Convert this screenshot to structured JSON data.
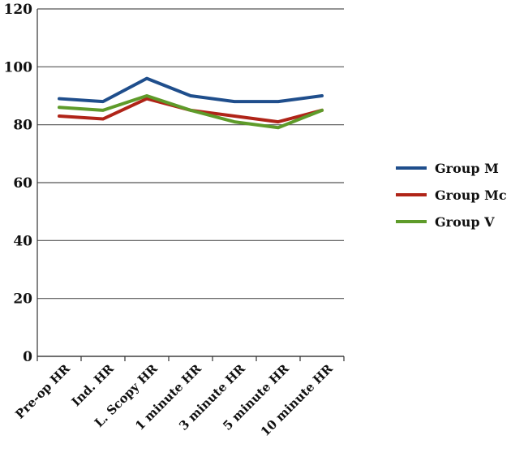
{
  "chart_data": {
    "type": "line",
    "title": "",
    "xlabel": "",
    "ylabel": "",
    "categories": [
      "Pre-op HR",
      "Ind. HR",
      "L. Scopy HR",
      "1 minute HR",
      "3 minute HR",
      "5 minute HR",
      "10 minute HR"
    ],
    "ylim": [
      0,
      120
    ],
    "yticks": [
      "0",
      "20",
      "40",
      "60",
      "80",
      "100",
      "120"
    ],
    "grid": true,
    "legend_position": "right",
    "series": [
      {
        "name": "Group M",
        "color": "#1f4e8c",
        "values": [
          89,
          88,
          96,
          90,
          88,
          88,
          90
        ]
      },
      {
        "name": "Group Mc",
        "color": "#b02418",
        "values": [
          83,
          82,
          89,
          85,
          83,
          81,
          85
        ]
      },
      {
        "name": "Group V",
        "color": "#5e9b2a",
        "values": [
          86,
          85,
          90,
          85,
          81,
          79,
          85
        ]
      }
    ]
  }
}
